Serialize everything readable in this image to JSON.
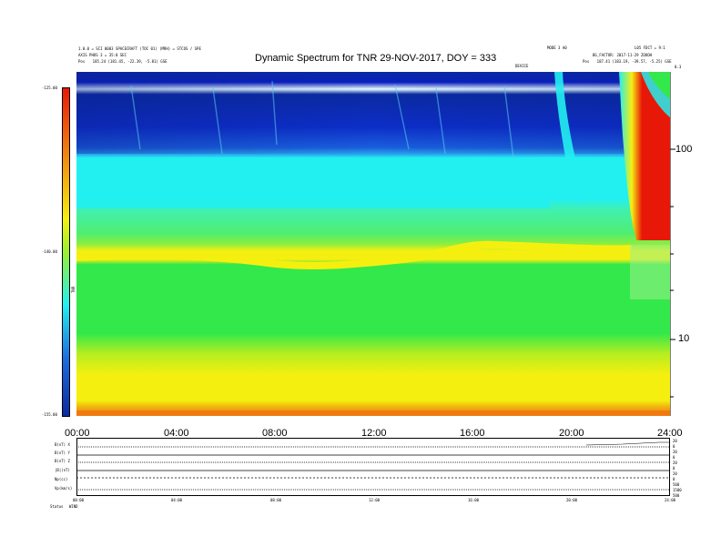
{
  "header": {
    "left_line1": "1.0.0 = SCI 0003 SPACECRAFT (TOC 01) (MRH) = STCOS / SPE",
    "left_line2": "AXIS PHOS 3 = 35:0 SEC",
    "left_line3_label": "Pos",
    "left_line3_value": "185.24 (181.45, -22.39, -5.81) GSE",
    "center_small": "DEVICE",
    "right_line1_a": "MODE 3 A0",
    "right_line1_b": "L05 FDCT = 9:1",
    "right_line2": "BG_FACTOR: 2017-11-29 ZOOOH",
    "right_line3_label": "Pos",
    "right_line3_value": "187.41 (183.19, -39.57, -5.25) GSE",
    "corner": "0.3"
  },
  "chart_data": {
    "type": "heatmap",
    "title": "Dynamic Spectrum for TNR 29-NOV-2017, DOY = 333",
    "xlabel": "",
    "ylabel": "",
    "x_ticks": [
      "00:00",
      "04:00",
      "08:00",
      "12:00",
      "16:00",
      "20:00",
      "24:00"
    ],
    "x_range": [
      0,
      24
    ],
    "y_scale": "log",
    "y_ticks": [
      "100",
      "10"
    ],
    "colorbar": {
      "label": "TNR",
      "ticks": [
        "-125.00",
        "-140.00",
        "-155.00"
      ],
      "range": [
        -155,
        -125
      ]
    }
  },
  "aux_panel": {
    "row_labels": [
      "B(nT) X",
      "B(nT) Y",
      "B(nT) Z",
      "|B|(nT)",
      "Np(cc)",
      "Vp(km/s)"
    ],
    "right_labels": [
      "20",
      "0",
      "20",
      "0",
      "20",
      "0",
      "20",
      "0",
      "500",
      "1500",
      "500"
    ],
    "x_ticks": [
      "00:00",
      "04:00",
      "08:00",
      "12:00",
      "16:00",
      "20:00",
      "24:00"
    ],
    "footer_label": "Status",
    "footer_value": "WIND"
  },
  "colors": {
    "bg_blue": "#0a2aa0",
    "mid_blue": "#1f6fe0",
    "cyan": "#22f0f0",
    "green": "#33e84a",
    "yellow": "#f5ef10",
    "orange": "#f07a10",
    "red": "#e81808"
  }
}
